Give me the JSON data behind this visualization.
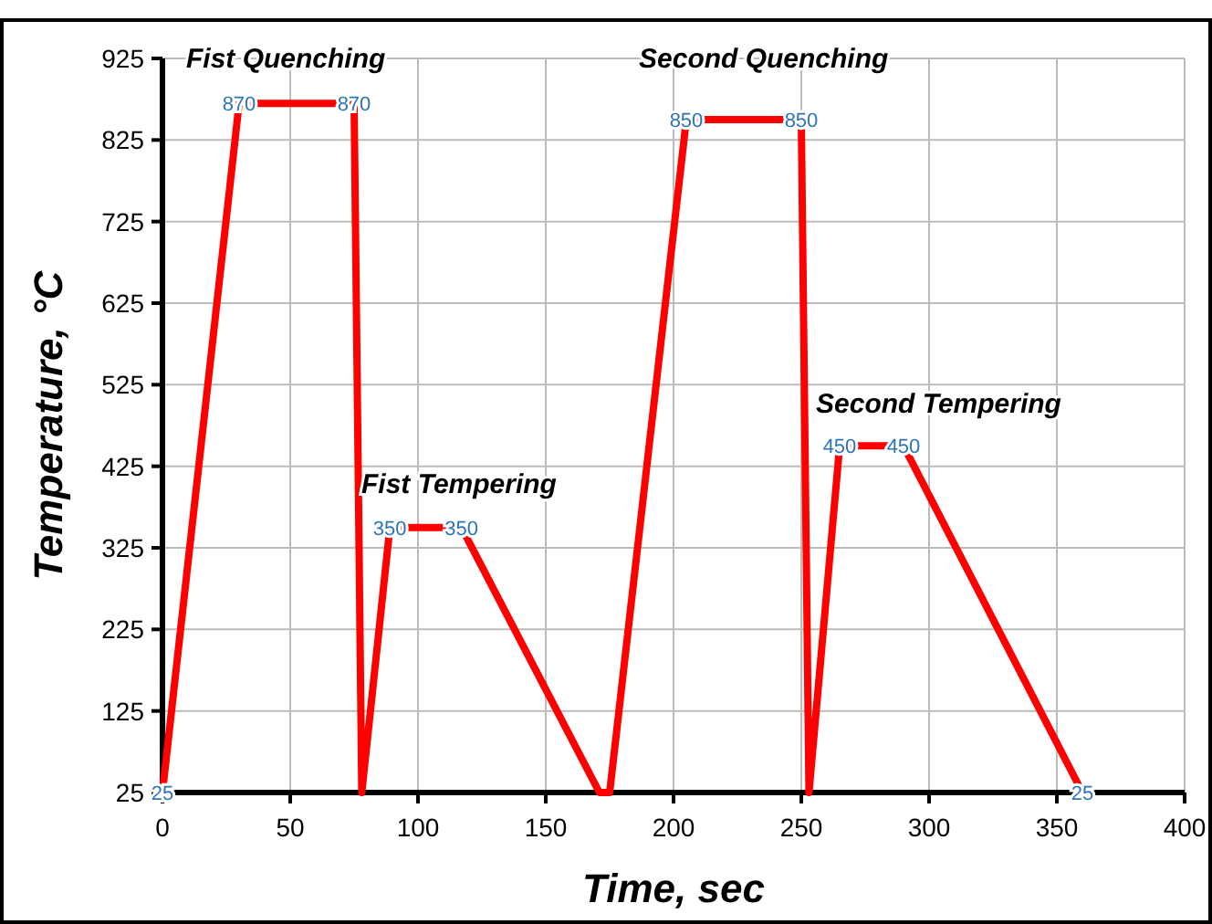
{
  "chart_data": {
    "type": "line",
    "xlabel": "Time, sec",
    "ylabel": "Temperature, °C",
    "x": [
      0,
      30,
      75,
      78,
      89,
      117,
      171,
      175,
      205,
      250,
      253,
      265,
      290,
      360
    ],
    "series": [
      {
        "color": "#ff0000",
        "values": [
          25,
          870,
          870,
          25,
          350,
          350,
          25,
          25,
          850,
          850,
          25,
          450,
          450,
          25
        ],
        "value_labels": [
          "25",
          "870",
          "870",
          null,
          "350",
          "350",
          null,
          null,
          "850",
          "850",
          null,
          "450",
          "450",
          "25"
        ]
      }
    ],
    "xlim": [
      0,
      400
    ],
    "xticks": [
      0,
      50,
      100,
      150,
      200,
      250,
      300,
      350,
      400
    ],
    "ylim": [
      25,
      925
    ],
    "yticks": [
      25,
      125,
      225,
      325,
      425,
      525,
      625,
      725,
      825,
      925
    ],
    "grid": true,
    "marker": "none",
    "line_style": "solid",
    "annotations": [
      "Fist Quenching",
      "Fist Tempering",
      "Second Quenching",
      "Second Tempering"
    ]
  }
}
